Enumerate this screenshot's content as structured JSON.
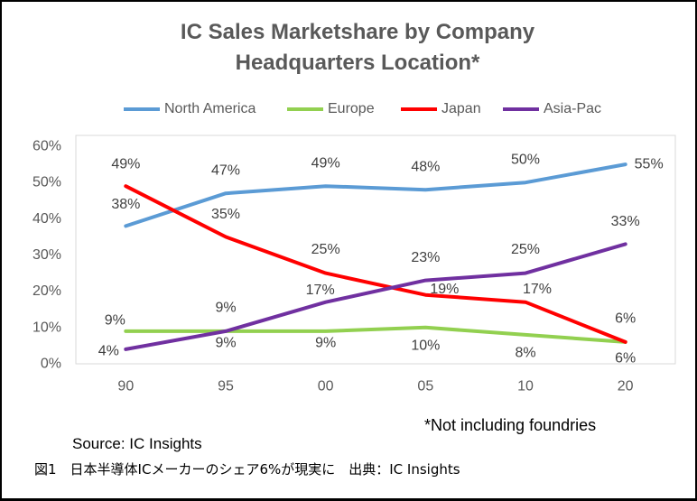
{
  "chart_data": {
    "type": "line",
    "title": "IC Sales Marketshare by Company Headquarters Location*",
    "categories": [
      "90",
      "95",
      "00",
      "05",
      "10",
      "20"
    ],
    "y_ticks": [
      "0%",
      "10%",
      "20%",
      "30%",
      "40%",
      "50%",
      "60%"
    ],
    "ylim": [
      0,
      60
    ],
    "grid": false,
    "legend_position": "top",
    "series": [
      {
        "name": "North America",
        "color": "#5b9bd5",
        "values": [
          38,
          47,
          49,
          48,
          50,
          55
        ],
        "labels": [
          "38%",
          "47%",
          "49%",
          "48%",
          "50%",
          "55%"
        ]
      },
      {
        "name": "Europe",
        "color": "#92d050",
        "values": [
          9,
          9,
          9,
          10,
          8,
          6
        ],
        "labels": [
          "9%",
          "9%",
          "9%",
          "10%",
          "8%",
          "6%"
        ]
      },
      {
        "name": "Japan",
        "color": "#ff0000",
        "values": [
          49,
          35,
          25,
          19,
          17,
          6
        ],
        "labels": [
          "49%",
          "35%",
          "25%",
          "19%",
          "17%",
          "6%"
        ]
      },
      {
        "name": "Asia-Pac",
        "color": "#7030a0",
        "values": [
          4,
          9,
          17,
          23,
          25,
          33
        ],
        "labels": [
          "4%",
          "9%",
          "17%",
          "23%",
          "25%",
          "33%"
        ]
      }
    ],
    "footnote": "*Not including foundries",
    "source": "Source: IC Insights"
  },
  "figure_caption": "図1　日本半導体ICメーカーのシェア6%が現実に　出典：IC Insights"
}
